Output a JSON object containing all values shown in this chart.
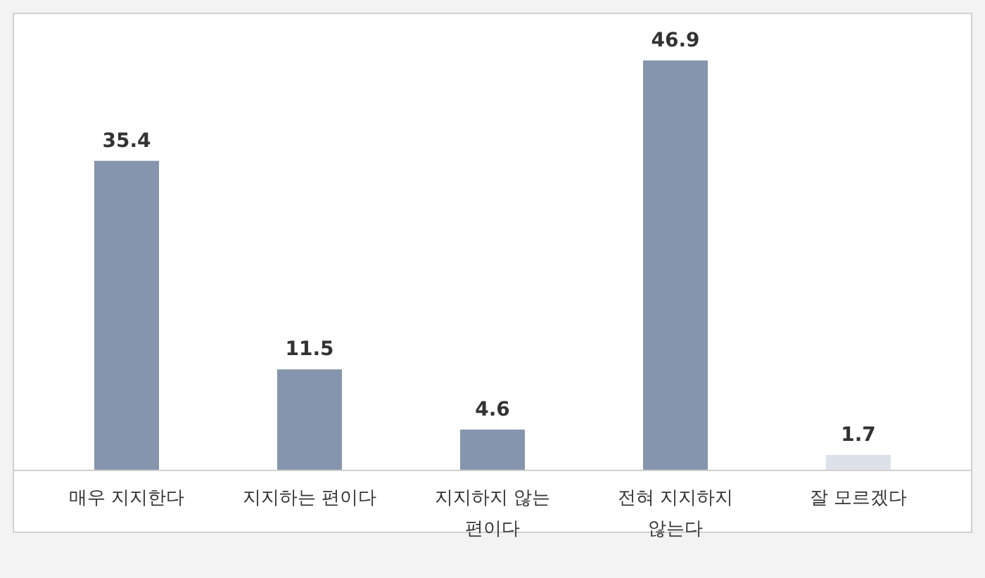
{
  "chart_data": {
    "type": "bar",
    "categories": [
      "매우 지지한다",
      "지지하는 편이다",
      "지지하지 않는 편이다",
      "전혀 지지하지 않는다",
      "잘 모르겠다"
    ],
    "values": [
      35.4,
      11.5,
      4.6,
      46.9,
      1.7
    ],
    "colors": [
      "#8595ad",
      "#8595ad",
      "#8595ad",
      "#8595ad",
      "#dde1e9"
    ],
    "data_labels": true
  }
}
